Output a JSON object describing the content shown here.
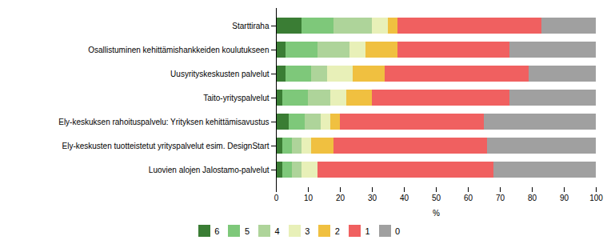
{
  "chart_data": {
    "type": "bar",
    "orientation": "horizontal",
    "stacked": true,
    "categories": [
      "Starttiraha",
      "Osallistuminen kehittämishankkeiden koulutukseen",
      "Uusyrityskeskusten palvelut",
      "Taito-yrityspalvelut",
      "Ely-keskuksen rahoituspalvelu: Yrityksen kehittämisavustus",
      "Ely-keskusten tuotteistetut yrityspalvelut esim. DesignStart",
      "Luovien alojen Jalostamo-palvelut"
    ],
    "series": [
      {
        "name": "6",
        "color": "#3a7d34",
        "values": [
          8,
          3,
          3,
          2,
          4,
          2,
          2
        ]
      },
      {
        "name": "5",
        "color": "#7ec87a",
        "values": [
          10,
          10,
          8,
          8,
          5,
          3,
          3
        ]
      },
      {
        "name": "4",
        "color": "#aed49a",
        "values": [
          12,
          10,
          5,
          7,
          5,
          3,
          3
        ]
      },
      {
        "name": "3",
        "color": "#e8f0b8",
        "values": [
          5,
          5,
          8,
          5,
          3,
          3,
          5
        ]
      },
      {
        "name": "2",
        "color": "#f0c040",
        "values": [
          3,
          10,
          10,
          8,
          3,
          7,
          0
        ]
      },
      {
        "name": "1",
        "color": "#f06060",
        "values": [
          45,
          35,
          45,
          43,
          45,
          48,
          55
        ]
      },
      {
        "name": "0",
        "color": "#a0a0a0",
        "values": [
          17,
          27,
          21,
          27,
          35,
          34,
          32
        ]
      }
    ],
    "xlabel": "%",
    "xlim": [
      0,
      100
    ],
    "xticks": [
      0,
      10,
      20,
      30,
      40,
      50,
      60,
      70,
      80,
      90,
      100
    ],
    "grid": false,
    "legend": "bottom"
  }
}
